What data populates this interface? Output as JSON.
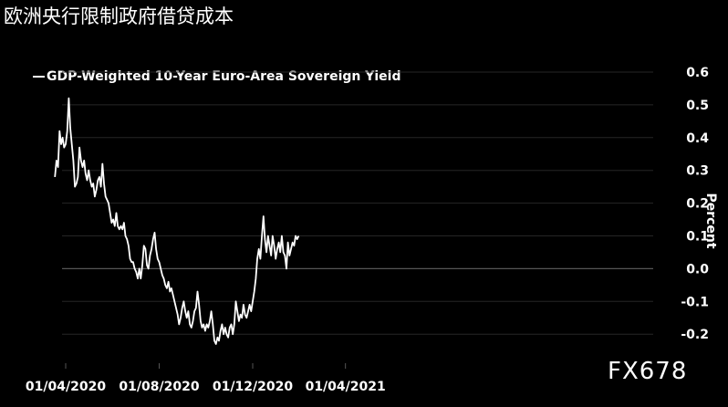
{
  "header": {
    "title": "欧洲央行限制政府借贷成本"
  },
  "watermark": "FX678",
  "chart_data": {
    "type": "line",
    "legend": "GDP-Weighted 10-Year Euro-Area Sovereign Yield",
    "ylabel": "Percent",
    "xlabel": "",
    "ylim": [
      -0.25,
      0.6
    ],
    "yticks": [
      0.6,
      0.5,
      0.4,
      0.3,
      0.2,
      0.1,
      0.0,
      -0.1,
      -0.2
    ],
    "ytick_labels": [
      "0.6",
      "0.5",
      "0.4",
      "0.3",
      "0.2",
      "0.1",
      "0.0",
      "-0.1",
      "-0.2"
    ],
    "xlim": [
      "2020-03-24",
      "2021-04-22"
    ],
    "xticks": [
      "2020-04-01",
      "2020-08-01",
      "2020-12-01",
      "2021-04-01"
    ],
    "xtick_labels": [
      "01/04/2020",
      "01/08/2020",
      "01/12/2020",
      "01/04/2021"
    ],
    "grid": true,
    "colors": {
      "line": "#ffffff",
      "background": "#000000",
      "grid": "#262626",
      "zero_line": "#555555"
    },
    "series": [
      {
        "name": "GDP-Weighted 10-Year Euro-Area Sovereign Yield",
        "points": [
          [
            "2020-03-18",
            0.28
          ],
          [
            "2020-03-20",
            0.33
          ],
          [
            "2020-03-22",
            0.31
          ],
          [
            "2020-03-24",
            0.42
          ],
          [
            "2020-03-26",
            0.38
          ],
          [
            "2020-03-28",
            0.4
          ],
          [
            "2020-03-30",
            0.37
          ],
          [
            "2020-04-01",
            0.38
          ],
          [
            "2020-04-03",
            0.42
          ],
          [
            "2020-04-05",
            0.52
          ],
          [
            "2020-04-07",
            0.43
          ],
          [
            "2020-04-09",
            0.38
          ],
          [
            "2020-04-11",
            0.33
          ],
          [
            "2020-04-13",
            0.25
          ],
          [
            "2020-04-15",
            0.26
          ],
          [
            "2020-04-17",
            0.28
          ],
          [
            "2020-04-19",
            0.37
          ],
          [
            "2020-04-21",
            0.33
          ],
          [
            "2020-04-23",
            0.31
          ],
          [
            "2020-04-25",
            0.33
          ],
          [
            "2020-04-27",
            0.29
          ],
          [
            "2020-04-29",
            0.27
          ],
          [
            "2020-05-01",
            0.3
          ],
          [
            "2020-05-03",
            0.27
          ],
          [
            "2020-05-05",
            0.25
          ],
          [
            "2020-05-07",
            0.26
          ],
          [
            "2020-05-09",
            0.22
          ],
          [
            "2020-05-11",
            0.24
          ],
          [
            "2020-05-13",
            0.27
          ],
          [
            "2020-05-15",
            0.28
          ],
          [
            "2020-05-17",
            0.25
          ],
          [
            "2020-05-19",
            0.32
          ],
          [
            "2020-05-21",
            0.26
          ],
          [
            "2020-05-23",
            0.22
          ],
          [
            "2020-05-25",
            0.21
          ],
          [
            "2020-05-27",
            0.2
          ],
          [
            "2020-05-29",
            0.17
          ],
          [
            "2020-05-31",
            0.14
          ],
          [
            "2020-06-02",
            0.15
          ],
          [
            "2020-06-04",
            0.13
          ],
          [
            "2020-06-06",
            0.17
          ],
          [
            "2020-06-08",
            0.13
          ],
          [
            "2020-06-10",
            0.12
          ],
          [
            "2020-06-12",
            0.13
          ],
          [
            "2020-06-14",
            0.12
          ],
          [
            "2020-06-16",
            0.14
          ],
          [
            "2020-06-18",
            0.1
          ],
          [
            "2020-06-20",
            0.09
          ],
          [
            "2020-06-22",
            0.07
          ],
          [
            "2020-06-24",
            0.03
          ],
          [
            "2020-06-26",
            0.02
          ],
          [
            "2020-06-28",
            0.02
          ],
          [
            "2020-06-30",
            0.0
          ],
          [
            "2020-07-02",
            -0.01
          ],
          [
            "2020-07-04",
            -0.03
          ],
          [
            "2020-07-06",
            0.0
          ],
          [
            "2020-07-08",
            -0.03
          ],
          [
            "2020-07-10",
            0.01
          ],
          [
            "2020-07-12",
            0.07
          ],
          [
            "2020-07-14",
            0.06
          ],
          [
            "2020-07-16",
            0.01
          ],
          [
            "2020-07-18",
            0.0
          ],
          [
            "2020-07-20",
            0.04
          ],
          [
            "2020-07-22",
            0.06
          ],
          [
            "2020-07-24",
            0.09
          ],
          [
            "2020-07-26",
            0.11
          ],
          [
            "2020-07-28",
            0.06
          ],
          [
            "2020-07-30",
            0.03
          ],
          [
            "2020-08-01",
            0.02
          ],
          [
            "2020-08-03",
            0.0
          ],
          [
            "2020-08-05",
            -0.02
          ],
          [
            "2020-08-07",
            -0.03
          ],
          [
            "2020-08-09",
            -0.05
          ],
          [
            "2020-08-11",
            -0.06
          ],
          [
            "2020-08-13",
            -0.04
          ],
          [
            "2020-08-15",
            -0.07
          ],
          [
            "2020-08-17",
            -0.06
          ],
          [
            "2020-08-19",
            -0.08
          ],
          [
            "2020-08-21",
            -0.1
          ],
          [
            "2020-08-23",
            -0.12
          ],
          [
            "2020-08-25",
            -0.14
          ],
          [
            "2020-08-27",
            -0.17
          ],
          [
            "2020-08-29",
            -0.15
          ],
          [
            "2020-08-31",
            -0.12
          ],
          [
            "2020-09-02",
            -0.1
          ],
          [
            "2020-09-04",
            -0.13
          ],
          [
            "2020-09-06",
            -0.15
          ],
          [
            "2020-09-08",
            -0.13
          ],
          [
            "2020-09-10",
            -0.17
          ],
          [
            "2020-09-12",
            -0.18
          ],
          [
            "2020-09-14",
            -0.16
          ],
          [
            "2020-09-16",
            -0.13
          ],
          [
            "2020-09-18",
            -0.12
          ],
          [
            "2020-09-20",
            -0.07
          ],
          [
            "2020-09-22",
            -0.11
          ],
          [
            "2020-09-24",
            -0.16
          ],
          [
            "2020-09-26",
            -0.18
          ],
          [
            "2020-09-28",
            -0.17
          ],
          [
            "2020-09-30",
            -0.19
          ],
          [
            "2020-10-02",
            -0.17
          ],
          [
            "2020-10-04",
            -0.18
          ],
          [
            "2020-10-06",
            -0.16
          ],
          [
            "2020-10-08",
            -0.13
          ],
          [
            "2020-10-10",
            -0.17
          ],
          [
            "2020-10-12",
            -0.22
          ],
          [
            "2020-10-14",
            -0.23
          ],
          [
            "2020-10-16",
            -0.21
          ],
          [
            "2020-10-18",
            -0.22
          ],
          [
            "2020-10-20",
            -0.19
          ],
          [
            "2020-10-22",
            -0.17
          ],
          [
            "2020-10-24",
            -0.2
          ],
          [
            "2020-10-26",
            -0.18
          ],
          [
            "2020-10-28",
            -0.2
          ],
          [
            "2020-10-30",
            -0.21
          ],
          [
            "2020-11-01",
            -0.18
          ],
          [
            "2020-11-03",
            -0.17
          ],
          [
            "2020-11-05",
            -0.2
          ],
          [
            "2020-11-07",
            -0.17
          ],
          [
            "2020-11-09",
            -0.1
          ],
          [
            "2020-11-11",
            -0.13
          ],
          [
            "2020-11-13",
            -0.16
          ],
          [
            "2020-11-15",
            -0.14
          ],
          [
            "2020-11-17",
            -0.15
          ],
          [
            "2020-11-19",
            -0.11
          ],
          [
            "2020-11-21",
            -0.14
          ],
          [
            "2020-11-23",
            -0.15
          ],
          [
            "2020-11-25",
            -0.13
          ],
          [
            "2020-11-27",
            -0.11
          ],
          [
            "2020-11-29",
            -0.13
          ],
          [
            "2020-12-01",
            -0.1
          ],
          [
            "2020-12-03",
            -0.07
          ],
          [
            "2020-12-05",
            -0.03
          ],
          [
            "2020-12-07",
            0.03
          ],
          [
            "2020-12-09",
            0.06
          ],
          [
            "2020-12-11",
            0.03
          ],
          [
            "2020-12-13",
            0.1
          ],
          [
            "2020-12-15",
            0.16
          ],
          [
            "2020-12-17",
            0.09
          ],
          [
            "2020-12-19",
            0.05
          ],
          [
            "2020-12-21",
            0.1
          ],
          [
            "2020-12-23",
            0.07
          ],
          [
            "2020-12-25",
            0.04
          ],
          [
            "2020-12-27",
            0.1
          ],
          [
            "2020-12-29",
            0.07
          ],
          [
            "2020-12-31",
            0.03
          ],
          [
            "2021-01-02",
            0.06
          ],
          [
            "2021-01-04",
            0.08
          ],
          [
            "2021-01-06",
            0.05
          ],
          [
            "2021-01-08",
            0.1
          ],
          [
            "2021-01-10",
            0.05
          ],
          [
            "2021-01-12",
            0.04
          ],
          [
            "2021-01-14",
            0.0
          ],
          [
            "2021-01-16",
            0.08
          ],
          [
            "2021-01-18",
            0.04
          ],
          [
            "2021-01-20",
            0.06
          ],
          [
            "2021-01-22",
            0.08
          ],
          [
            "2021-01-24",
            0.07
          ],
          [
            "2021-01-26",
            0.1
          ],
          [
            "2021-01-28",
            0.09
          ],
          [
            "2021-01-30",
            0.1
          ]
        ]
      }
    ]
  }
}
